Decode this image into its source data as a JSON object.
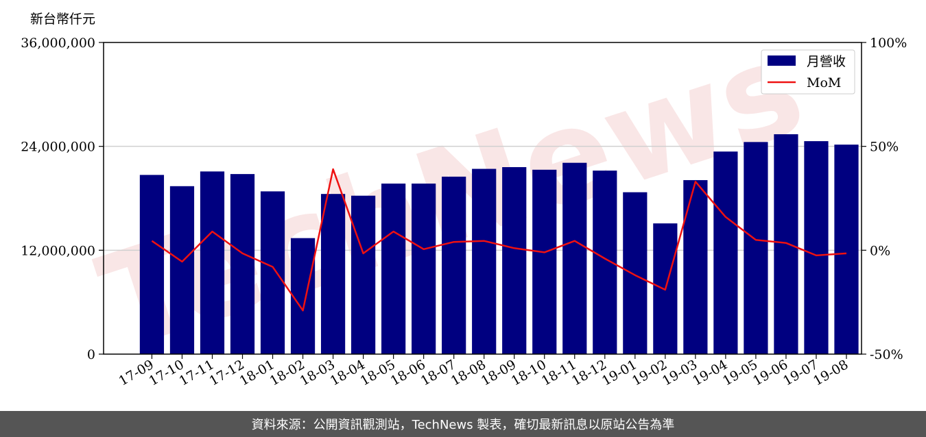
{
  "chart_data": {
    "type": "bar",
    "unit_label": "新台幣仟元",
    "categories": [
      "17-09",
      "17-10",
      "17-11",
      "17-12",
      "18-01",
      "18-02",
      "18-03",
      "18-04",
      "18-05",
      "18-06",
      "18-07",
      "18-08",
      "18-09",
      "18-10",
      "18-11",
      "18-12",
      "19-01",
      "19-02",
      "19-03",
      "19-04",
      "19-05",
      "19-06",
      "19-07",
      "19-08"
    ],
    "series": [
      {
        "name": "月營收",
        "type": "bar",
        "axis": "left",
        "color": "#000080",
        "values": [
          20700000,
          19400000,
          21100000,
          20800000,
          18800000,
          13400000,
          18500000,
          18300000,
          19700000,
          19700000,
          20500000,
          21400000,
          21600000,
          21300000,
          22100000,
          21200000,
          18700000,
          15100000,
          20100000,
          23400000,
          24500000,
          25400000,
          24600000,
          24200000
        ]
      },
      {
        "name": "MoM",
        "type": "line",
        "axis": "right",
        "color": "#ee1111",
        "values": [
          4.5,
          -5.5,
          9,
          -1.5,
          -8,
          -29,
          39,
          -1.5,
          9,
          0.5,
          4,
          4.5,
          1,
          -1,
          4.5,
          -4,
          -12,
          -19,
          33,
          16,
          5,
          3.5,
          -2.5,
          -1.5
        ]
      }
    ],
    "left_axis": {
      "ylim": [
        0,
        36000000
      ],
      "ticks": [
        0,
        12000000,
        24000000,
        36000000
      ],
      "tick_labels": [
        "0",
        "12,000,000",
        "24,000,000",
        "36,000,000"
      ]
    },
    "right_axis": {
      "ylim": [
        -50,
        100
      ],
      "ticks": [
        -50,
        0,
        50,
        100
      ],
      "tick_labels": [
        "-50%",
        "0%",
        "50%",
        "100%"
      ]
    },
    "grid": "horizontal",
    "legend_placement": "top-right"
  },
  "watermark": {
    "text": "TechNews",
    "color": "#f3c9c9"
  },
  "footer": {
    "text": "資料來源：公開資訊觀測站，TechNews 製表，確切最新訊息以原站公告為準"
  }
}
